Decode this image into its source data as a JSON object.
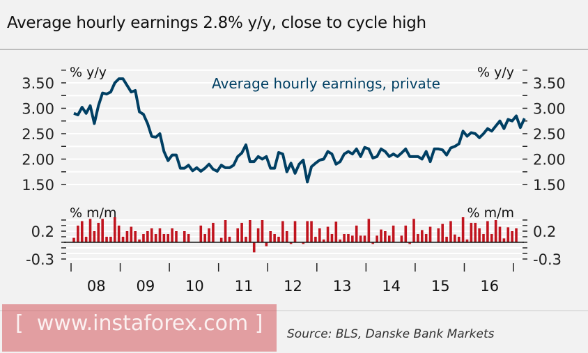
{
  "title": "Average hourly earnings 2.8% y/y, close to cycle high",
  "source": "Source: BLS, Danske Bank Markets",
  "watermark": "[  www.instaforex.com ]",
  "colors": {
    "line": "#003f63",
    "bar": "#c0141e",
    "grid": "#ffffff"
  },
  "chart_data": [
    {
      "type": "line",
      "title": "Average hourly earnings, private",
      "ylabel_left": "% y/y",
      "ylabel_right": "% y/y",
      "ylim": [
        1.5,
        3.75
      ],
      "yticks": [
        "3.50",
        "3.00",
        "2.50",
        "2.00",
        "1.50"
      ],
      "ytick_values": [
        3.5,
        3.0,
        2.5,
        2.0,
        1.5
      ],
      "x_start": "2008-01",
      "frequency": "monthly",
      "values": [
        2.9,
        2.87,
        3.02,
        2.9,
        3.05,
        2.7,
        3.05,
        3.3,
        3.28,
        3.32,
        3.5,
        3.58,
        3.58,
        3.45,
        3.32,
        3.35,
        2.93,
        2.88,
        2.7,
        2.45,
        2.43,
        2.5,
        2.15,
        1.97,
        2.08,
        2.08,
        1.82,
        1.82,
        1.88,
        1.77,
        1.83,
        1.76,
        1.82,
        1.9,
        1.8,
        1.76,
        1.88,
        1.83,
        1.83,
        1.88,
        2.05,
        2.12,
        2.28,
        1.95,
        1.95,
        2.05,
        2.0,
        2.05,
        1.82,
        1.82,
        2.13,
        2.1,
        1.75,
        1.92,
        1.72,
        1.9,
        1.98,
        1.55,
        1.85,
        1.92,
        1.98,
        2.0,
        2.15,
        2.1,
        1.9,
        1.95,
        2.1,
        2.15,
        2.1,
        2.2,
        2.05,
        2.23,
        2.2,
        2.02,
        2.05,
        2.2,
        2.15,
        2.05,
        2.1,
        2.05,
        2.12,
        2.2,
        2.05,
        2.05,
        2.05,
        2.0,
        2.15,
        1.95,
        2.2,
        2.2,
        2.18,
        2.08,
        2.22,
        2.25,
        2.3,
        2.55,
        2.45,
        2.52,
        2.5,
        2.42,
        2.5,
        2.6,
        2.55,
        2.65,
        2.75,
        2.6,
        2.78,
        2.75,
        2.85,
        2.62,
        2.8
      ]
    },
    {
      "type": "bar",
      "ylabel_left": "% m/m",
      "ylabel_right": "% m/m",
      "ylim": [
        -0.35,
        0.45
      ],
      "yticks": [
        "0.2",
        "-0.3"
      ],
      "ytick_values": [
        0.2,
        -0.3
      ],
      "x_start": "2008-01",
      "frequency": "monthly",
      "xtick_labels": [
        "08",
        "09",
        "10",
        "11",
        "12",
        "13",
        "14",
        "15",
        "16"
      ],
      "values": [
        0.08,
        0.3,
        0.38,
        0.1,
        0.42,
        0.2,
        0.35,
        0.42,
        0.1,
        0.1,
        0.45,
        0.3,
        0.1,
        0.2,
        0.28,
        0.2,
        0.05,
        0.15,
        0.2,
        0.25,
        0.15,
        0.25,
        0.15,
        0.15,
        0.25,
        0.2,
        0.0,
        0.2,
        0.15,
        0.0,
        0.0,
        0.3,
        0.15,
        0.25,
        0.35,
        0.0,
        0.08,
        0.4,
        0.1,
        0.0,
        0.25,
        0.35,
        0.1,
        0.4,
        -0.18,
        0.25,
        0.4,
        -0.07,
        0.2,
        0.15,
        0.1,
        0.38,
        0.2,
        -0.03,
        0.38,
        0.0,
        -0.03,
        0.38,
        0.38,
        0.1,
        0.25,
        0.05,
        0.28,
        0.15,
        0.37,
        0.05,
        0.15,
        0.15,
        0.12,
        0.3,
        0.12,
        0.12,
        0.42,
        -0.03,
        0.12,
        0.23,
        0.2,
        0.12,
        0.3,
        0.0,
        0.12,
        0.3,
        -0.03,
        0.42,
        0.15,
        0.22,
        0.15,
        0.28,
        0.0,
        0.25,
        0.33,
        0.1,
        0.38,
        0.14,
        0.1,
        0.45,
        0.05,
        0.35,
        0.35,
        0.25,
        0.15,
        0.38,
        0.15,
        0.4,
        0.28,
        0.07,
        0.27,
        0.2,
        0.25
      ]
    }
  ]
}
